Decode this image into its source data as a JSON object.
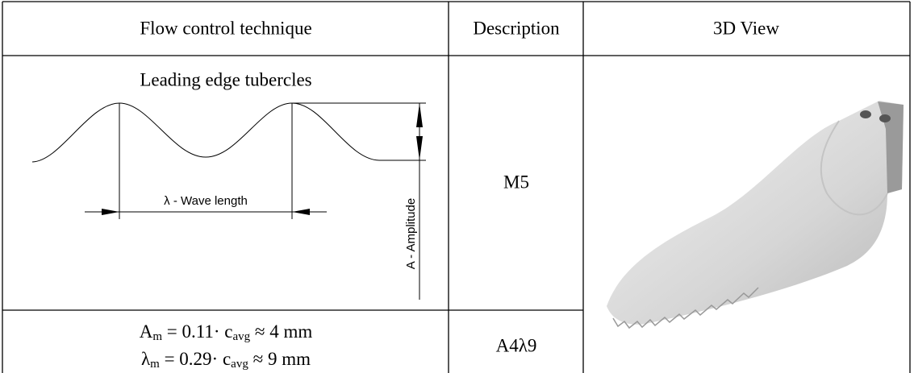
{
  "table": {
    "header": [
      "Flow control technique",
      "Description",
      "3D View"
    ],
    "rows": [
      {
        "technique": "Leading edge tubercles",
        "wavelength_label": "λ - Wave length",
        "amplitude_label": "A - Amplitude",
        "description": "M5"
      },
      {
        "formulas": [
          [
            "A",
            "m",
            " = 0.11· c",
            "avg",
            " ≈ 4 mm"
          ],
          [
            "λ",
            "m",
            " = 0.29· c",
            "avg",
            " ≈ 9 mm"
          ]
        ],
        "description": "A4λ9"
      }
    ]
  }
}
